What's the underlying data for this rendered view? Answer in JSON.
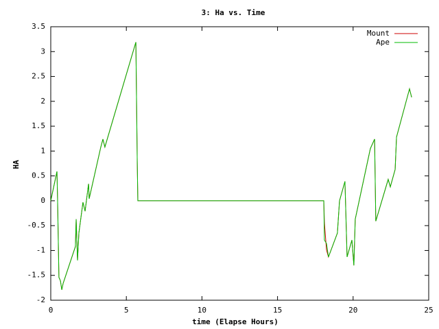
{
  "chart_data": {
    "type": "line",
    "title": "3: Ha vs. Time",
    "x_label": "time (Elapse Hours)",
    "y_label": "HA",
    "x": [
      0,
      0.41,
      0.45,
      0.54,
      0.64,
      0.73,
      0.82,
      1.63,
      1.68,
      1.77,
      1.86,
      2.13,
      2.27,
      2.5,
      2.54,
      3.31,
      3.45,
      3.58,
      5.63,
      5.72,
      5.76,
      18.06,
      18.1,
      18.24,
      18.37,
      18.96,
      19.1,
      19.46,
      19.6,
      19.92,
      20.05,
      20.14,
      21.14,
      21.42,
      21.5,
      22.32,
      22.46,
      22.78,
      22.87,
      23.73,
      23.87
    ],
    "series": [
      {
        "name": "Mount",
        "color": "#cc0000",
        "values": [
          0,
          0.59,
          0.04,
          -1.54,
          -1.61,
          -1.79,
          -1.66,
          -0.92,
          -0.37,
          -1.2,
          -0.65,
          -0.03,
          -0.21,
          0.34,
          0.04,
          1.08,
          1.24,
          1.08,
          3.19,
          0.8,
          0,
          0,
          -0.44,
          -0.99,
          -1.13,
          -0.65,
          0,
          0.39,
          -1.13,
          -0.79,
          -1.3,
          -0.37,
          1.05,
          1.24,
          -0.41,
          0.43,
          0.28,
          0.63,
          1.28,
          2.25,
          2.08
        ]
      },
      {
        "name": "Ape",
        "color": "#00bb00",
        "values": [
          0,
          0.59,
          0.04,
          -1.54,
          -1.61,
          -1.79,
          -1.66,
          -0.92,
          -0.37,
          -1.2,
          -0.65,
          -0.03,
          -0.21,
          0.34,
          0.04,
          1.08,
          1.24,
          1.08,
          3.19,
          0.8,
          0,
          0,
          -0.79,
          -0.86,
          -1.13,
          -0.65,
          0,
          0.39,
          -1.13,
          -0.79,
          -1.3,
          -0.37,
          1.05,
          1.24,
          -0.41,
          0.43,
          0.28,
          0.63,
          1.28,
          2.25,
          2.08
        ]
      }
    ],
    "xlim": [
      0,
      25
    ],
    "xticks": [
      0,
      5,
      10,
      15,
      20,
      25
    ],
    "ylim": [
      -2,
      3.5
    ],
    "yticks": [
      -2,
      -1.5,
      -1,
      -0.5,
      0,
      0.5,
      1,
      1.5,
      2,
      2.5,
      3,
      3.5
    ],
    "legend": "upper right"
  }
}
